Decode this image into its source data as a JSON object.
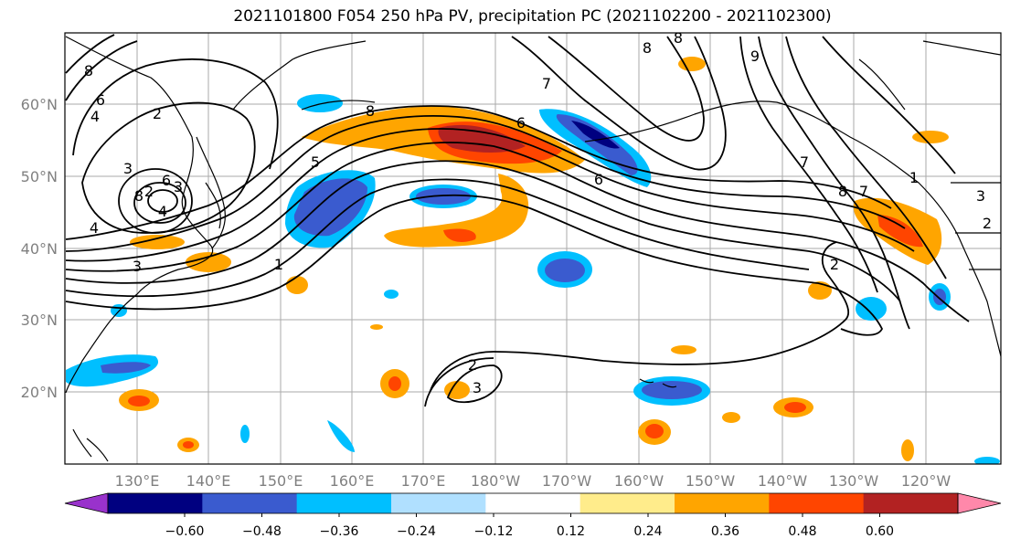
{
  "title": "2021101800 F054 250 hPa PV, precipitation PC (2021102200 - 2021102300)",
  "lat_labels": [
    "60°N",
    "50°N",
    "40°N",
    "30°N",
    "20°N"
  ],
  "lon_labels": [
    "130°E",
    "140°E",
    "150°E",
    "160°E",
    "170°E",
    "180°W",
    "170°W",
    "160°W",
    "150°W",
    "140°W",
    "130°W",
    "120°W"
  ],
  "contour_labels": [
    "8",
    "6",
    "4",
    "2",
    "3",
    "6",
    "8",
    "4",
    "4",
    "3",
    "8",
    "6",
    "5",
    "1",
    "8",
    "9",
    "6",
    "7",
    "8",
    "2",
    "7",
    "3",
    "2",
    "8",
    "7",
    "3",
    "2",
    "3",
    "2",
    "1"
  ],
  "colorbar": {
    "colors": [
      "#9932cc",
      "#000080",
      "#3a5bcf",
      "#00bfff",
      "#b0e0ff",
      "#ffffff",
      "#ffec8b",
      "#ffa500",
      "#ff4500",
      "#b22222",
      "#ff88aa"
    ],
    "tick_labels": [
      "−0.60",
      "−0.48",
      "−0.36",
      "−0.24",
      "−0.12",
      "0.12",
      "0.24",
      "0.36",
      "0.48",
      "0.60"
    ]
  }
}
